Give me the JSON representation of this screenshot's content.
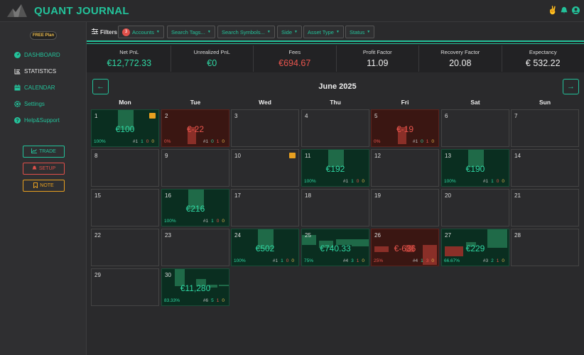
{
  "app": {
    "title": "QUANT JOURNAL"
  },
  "colors": {
    "accent": "#23c29a",
    "negative": "#e0504a",
    "warning": "#e8a020"
  },
  "sidebar": {
    "plan": "FREE Plan",
    "items": [
      {
        "label": "DASHBOARD",
        "icon": "dashboard-icon"
      },
      {
        "label": "STATISTICS",
        "icon": "statistics-icon"
      },
      {
        "label": "CALENDAR",
        "icon": "calendar-icon"
      },
      {
        "label": "Settings",
        "icon": "gear-icon"
      },
      {
        "label": "Help&Support",
        "icon": "help-icon"
      }
    ],
    "buttons": {
      "trade": "TRADE",
      "setup": "SETUP",
      "note": "NOTE"
    }
  },
  "filters": {
    "label": "Filters",
    "accounts_badge": "3",
    "items": [
      "Accounts",
      "Search Tags...",
      "Search Symbols...",
      "Side",
      "Asset Type",
      "Status"
    ]
  },
  "stats": [
    {
      "label": "Net PnL",
      "value": "€12,772.33"
    },
    {
      "label": "Unrealized PnL",
      "value": "€0"
    },
    {
      "label": "Fees",
      "value": "€694.67"
    },
    {
      "label": "Profit Factor",
      "value": "11.09"
    },
    {
      "label": "Recovery Factor",
      "value": "20.08"
    },
    {
      "label": "Expectancy",
      "value": "€ 532.22"
    }
  ],
  "calendar": {
    "month": "June 2025",
    "weekdays": [
      "Mon",
      "Tue",
      "Wed",
      "Thu",
      "Fri",
      "Sat",
      "Sun"
    ],
    "days": [
      {
        "d": "1",
        "pnl": "€100",
        "wr": "100%",
        "t": "#1",
        "w": "1",
        "l": "0",
        "b": "0",
        "note": true
      },
      {
        "d": "2",
        "pnl": "€-22",
        "wr": "0%",
        "t": "#1",
        "w": "0",
        "l": "1",
        "b": "0"
      },
      {
        "d": "3"
      },
      {
        "d": "4"
      },
      {
        "d": "5",
        "pnl": "€-19",
        "wr": "0%",
        "t": "#1",
        "w": "0",
        "l": "1",
        "b": "0"
      },
      {
        "d": "6"
      },
      {
        "d": "7"
      },
      {
        "d": "8"
      },
      {
        "d": "9"
      },
      {
        "d": "10",
        "note": true
      },
      {
        "d": "11",
        "pnl": "€192",
        "wr": "100%",
        "t": "#1",
        "w": "1",
        "l": "0",
        "b": "0"
      },
      {
        "d": "12"
      },
      {
        "d": "13",
        "pnl": "€190",
        "wr": "100%",
        "t": "#1",
        "w": "1",
        "l": "0",
        "b": "0"
      },
      {
        "d": "14"
      },
      {
        "d": "15"
      },
      {
        "d": "16",
        "pnl": "€216",
        "wr": "100%",
        "t": "#1",
        "w": "1",
        "l": "0",
        "b": "0"
      },
      {
        "d": "17"
      },
      {
        "d": "18"
      },
      {
        "d": "19"
      },
      {
        "d": "20"
      },
      {
        "d": "21"
      },
      {
        "d": "22"
      },
      {
        "d": "23"
      },
      {
        "d": "24",
        "pnl": "€502",
        "wr": "100%",
        "t": "#1",
        "w": "1",
        "l": "0",
        "b": "0"
      },
      {
        "d": "25",
        "pnl": "€740.33",
        "wr": "75%",
        "t": "#4",
        "w": "3",
        "l": "1",
        "b": "0"
      },
      {
        "d": "26",
        "pnl": "€-636",
        "wr": "25%",
        "t": "#4",
        "w": "1",
        "l": "3",
        "b": "0"
      },
      {
        "d": "27",
        "pnl": "€229",
        "wr": "66.67%",
        "t": "#3",
        "w": "2",
        "l": "1",
        "b": "0"
      },
      {
        "d": "28"
      },
      {
        "d": "29"
      },
      {
        "d": "30",
        "pnl": "€11,280",
        "wr": "83.33%",
        "t": "#6",
        "w": "5",
        "l": "1",
        "b": "0"
      }
    ]
  }
}
